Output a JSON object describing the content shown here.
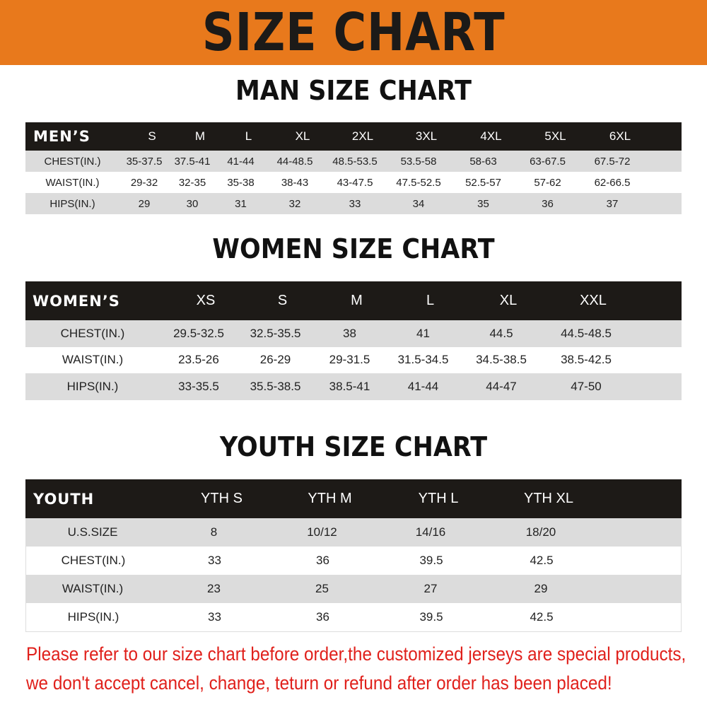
{
  "banner_title": "SIZE CHART",
  "colors": {
    "banner": "#e8791c",
    "header_row": "#1d1a17",
    "stripe": "#dcdcdc",
    "notice": "#e0201b"
  },
  "men": {
    "title": "MAN SIZE CHART",
    "header": [
      "MEN’S",
      "S",
      "M",
      "L",
      "XL",
      "2XL",
      "3XL",
      "4XL",
      "5XL",
      "6XL"
    ],
    "rows": [
      [
        "CHEST(IN.)",
        "35-37.5",
        "37.5-41",
        "41-44",
        "44-48.5",
        "48.5-53.5",
        "53.5-58",
        "58-63",
        "63-67.5",
        "67.5-72"
      ],
      [
        "WAIST(IN.)",
        "29-32",
        "32-35",
        "35-38",
        "38-43",
        "43-47.5",
        "47.5-52.5",
        "52.5-57",
        "57-62",
        "62-66.5"
      ],
      [
        "HIPS(IN.)",
        "29",
        "30",
        "31",
        "32",
        "33",
        "34",
        "35",
        "36",
        "37"
      ]
    ]
  },
  "women": {
    "title": "WOMEN SIZE CHART",
    "header": [
      "WOMEN’S",
      "XS",
      "S",
      "M",
      "L",
      "XL",
      "XXL"
    ],
    "rows": [
      [
        "CHEST(IN.)",
        "29.5-32.5",
        "32.5-35.5",
        "38",
        "41",
        "44.5",
        "44.5-48.5"
      ],
      [
        "WAIST(IN.)",
        "23.5-26",
        "26-29",
        "29-31.5",
        "31.5-34.5",
        "34.5-38.5",
        "38.5-42.5"
      ],
      [
        "HIPS(IN.)",
        "33-35.5",
        "35.5-38.5",
        "38.5-41",
        "41-44",
        "44-47",
        "47-50"
      ]
    ]
  },
  "youth": {
    "title": "YOUTH SIZE CHART",
    "header": [
      "YOUTH",
      "YTH S",
      "YTH M",
      "YTH L",
      "YTH XL"
    ],
    "rows": [
      [
        "U.S.SIZE",
        "8",
        "10/12",
        "14/16",
        "18/20"
      ],
      [
        "CHEST(IN.)",
        "33",
        "36",
        "39.5",
        "42.5"
      ],
      [
        "WAIST(IN.)",
        "23",
        "25",
        "27",
        "29"
      ],
      [
        "HIPS(IN.)",
        "33",
        "36",
        "39.5",
        "42.5"
      ]
    ]
  },
  "notice": {
    "line1": "Please refer to our size chart before order,the customized jerseys are special products,",
    "line2": "we don't accept cancel, change, teturn or refund after order has been placed!"
  }
}
